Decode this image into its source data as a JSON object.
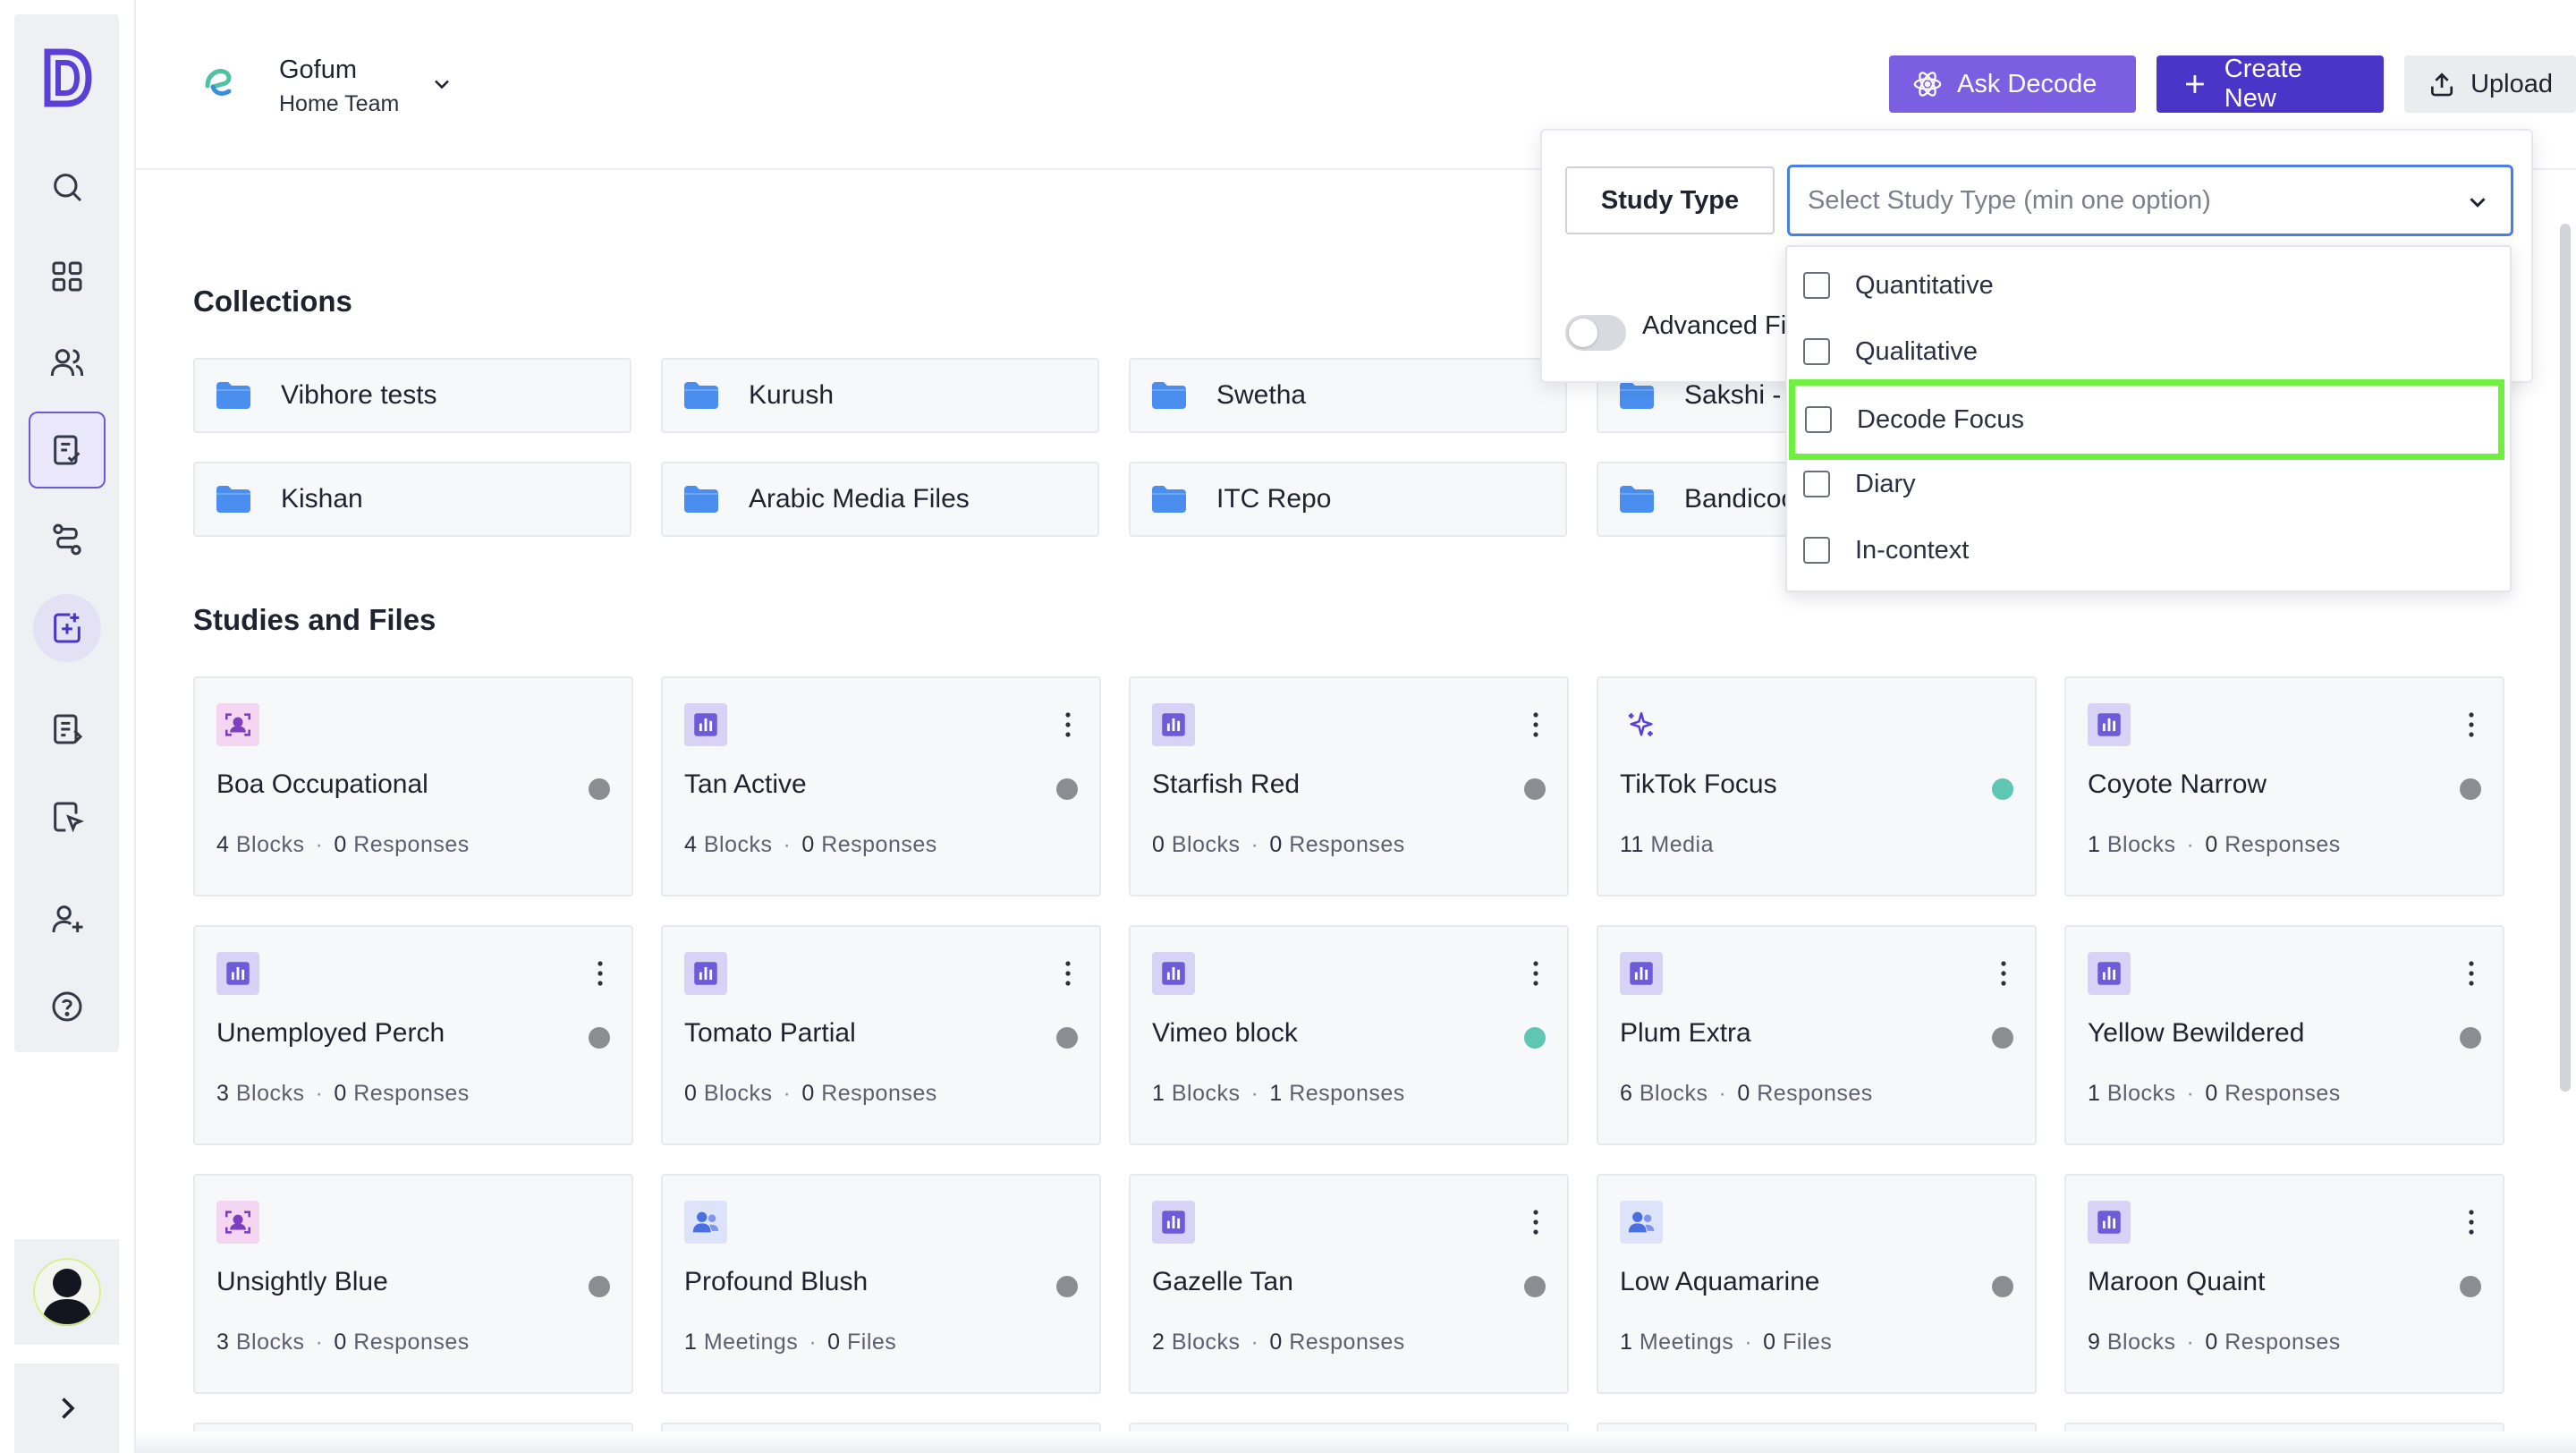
{
  "team": {
    "name": "Gofum",
    "subtitle": "Home Team"
  },
  "header": {
    "ask_label": "Ask Decode",
    "create_label": "Create New",
    "upload_label": "Upload"
  },
  "collections": {
    "title": "Collections",
    "items": [
      {
        "label": "Vibhore tests"
      },
      {
        "label": "Kurush"
      },
      {
        "label": "Swetha"
      },
      {
        "label": "Sakshi - Media Analysis"
      },
      {
        "label": "Kishan"
      },
      {
        "label": "Arabic Media Files"
      },
      {
        "label": "ITC Repo"
      },
      {
        "label": "Bandicoot Collection"
      }
    ]
  },
  "studies": {
    "title": "Studies and Files",
    "items": [
      {
        "icon": "face-icon",
        "title": "Boa Occupational",
        "n1": "4",
        "l1": "Blocks",
        "n2": "0",
        "l2": "Responses",
        "status": "gray",
        "kebab": false
      },
      {
        "icon": "bar-chart-icon",
        "title": "Tan Active",
        "n1": "4",
        "l1": "Blocks",
        "n2": "0",
        "l2": "Responses",
        "status": "gray",
        "kebab": true
      },
      {
        "icon": "bar-chart-icon",
        "title": "Starfish Red",
        "n1": "0",
        "l1": "Blocks",
        "n2": "0",
        "l2": "Responses",
        "status": "gray",
        "kebab": true
      },
      {
        "icon": "sparkle-icon",
        "title": "TikTok Focus",
        "n1": "11",
        "l1": "Media",
        "n2": "",
        "l2": "",
        "status": "green",
        "kebab": false
      },
      {
        "icon": "bar-chart-icon",
        "title": "Coyote Narrow",
        "n1": "1",
        "l1": "Blocks",
        "n2": "0",
        "l2": "Responses",
        "status": "gray",
        "kebab": true
      },
      {
        "icon": "bar-chart-icon",
        "title": "Unemployed Perch",
        "n1": "3",
        "l1": "Blocks",
        "n2": "0",
        "l2": "Responses",
        "status": "gray",
        "kebab": true
      },
      {
        "icon": "bar-chart-icon",
        "title": "Tomato Partial",
        "n1": "0",
        "l1": "Blocks",
        "n2": "0",
        "l2": "Responses",
        "status": "gray",
        "kebab": true
      },
      {
        "icon": "bar-chart-icon",
        "title": "Vimeo block",
        "n1": "1",
        "l1": "Blocks",
        "n2": "1",
        "l2": "Responses",
        "status": "green",
        "kebab": true
      },
      {
        "icon": "bar-chart-icon",
        "title": "Plum Extra",
        "n1": "6",
        "l1": "Blocks",
        "n2": "0",
        "l2": "Responses",
        "status": "gray",
        "kebab": true
      },
      {
        "icon": "bar-chart-icon",
        "title": "Yellow Bewildered",
        "n1": "1",
        "l1": "Blocks",
        "n2": "0",
        "l2": "Responses",
        "status": "gray",
        "kebab": true
      },
      {
        "icon": "face-icon",
        "title": "Unsightly Blue",
        "n1": "3",
        "l1": "Blocks",
        "n2": "0",
        "l2": "Responses",
        "status": "gray",
        "kebab": false
      },
      {
        "icon": "meeting-icon",
        "title": "Profound Blush",
        "n1": "1",
        "l1": "Meetings",
        "n2": "0",
        "l2": "Files",
        "status": "gray",
        "kebab": false
      },
      {
        "icon": "bar-chart-icon",
        "title": "Gazelle Tan",
        "n1": "2",
        "l1": "Blocks",
        "n2": "0",
        "l2": "Responses",
        "status": "gray",
        "kebab": true
      },
      {
        "icon": "meeting-icon",
        "title": "Low Aquamarine",
        "n1": "1",
        "l1": "Meetings",
        "n2": "0",
        "l2": "Files",
        "status": "gray",
        "kebab": false
      },
      {
        "icon": "bar-chart-icon",
        "title": "Maroon Quaint",
        "n1": "9",
        "l1": "Blocks",
        "n2": "0",
        "l2": "Responses",
        "status": "gray",
        "kebab": true
      }
    ]
  },
  "filter": {
    "pill_label": "Study Type",
    "select_placeholder": "Select Study Type (min one option)",
    "advanced_label": "Advanced Filters",
    "options": [
      {
        "label": "Quantitative",
        "checked": false
      },
      {
        "label": "Qualitative",
        "checked": false
      },
      {
        "label": "Decode Focus",
        "checked": false,
        "highlighted": true
      },
      {
        "label": "Diary",
        "checked": false
      },
      {
        "label": "In-context",
        "checked": false
      }
    ]
  },
  "colors": {
    "accent": "#4a35c9",
    "ask": "#7b5fe0",
    "highlight": "#6ef03e",
    "status_green": "#5fc6b3",
    "status_gray": "#8c8d92"
  }
}
